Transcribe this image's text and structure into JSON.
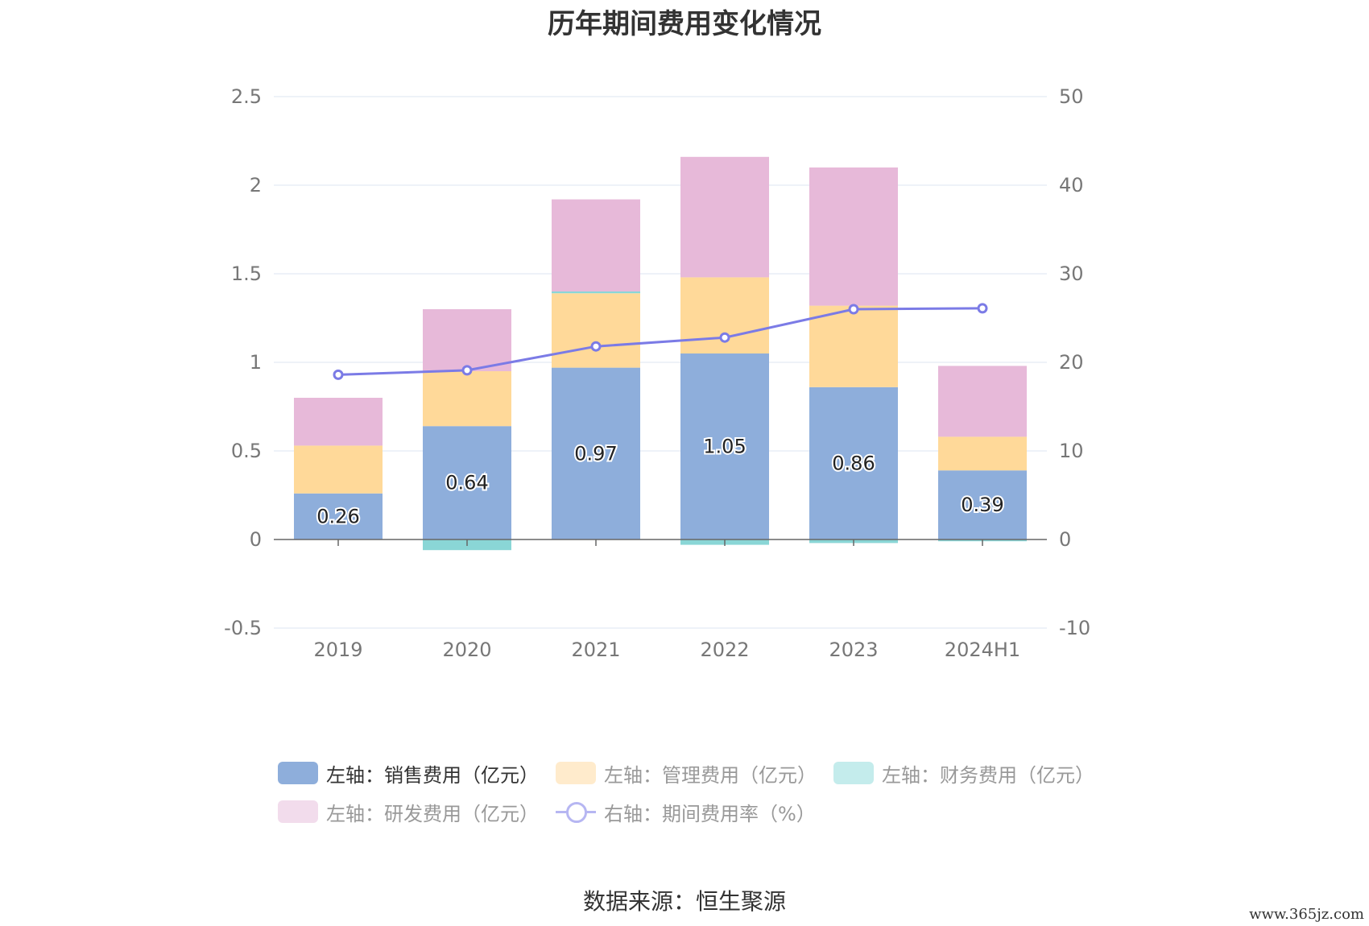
{
  "title": "历年期间费用变化情况",
  "source": "数据来源：恒生聚源",
  "watermark": "www.365jz.com",
  "colors": {
    "sales": "#8eaedb",
    "admin": "#ffd999",
    "finance": "#8ad6d6",
    "rnd": "#e7b9d9",
    "rate": "#7b7be6",
    "grid": "#dde4f2",
    "axis": "#666666",
    "tick_text": "#777777"
  },
  "legend": [
    {
      "label": "左轴：销售费用（亿元）",
      "color": "#8eaedb",
      "kind": "bar",
      "active": true
    },
    {
      "label": "左轴：管理费用（亿元）",
      "color": "#ffebcc",
      "kind": "bar",
      "active": false
    },
    {
      "label": "左轴：财务费用（亿元）",
      "color": "#c4ecec",
      "kind": "bar",
      "active": false
    },
    {
      "label": "左轴：研发费用（亿元）",
      "color": "#f2dcec",
      "kind": "bar",
      "active": false
    },
    {
      "label": "右轴：期间费用率（%）",
      "color": "#b6b6f2",
      "kind": "line",
      "active": false
    }
  ],
  "chart_data": {
    "type": "bar",
    "title": "历年期间费用变化情况",
    "categories": [
      "2019",
      "2020",
      "2021",
      "2022",
      "2023",
      "2024H1"
    ],
    "y_left": {
      "ylim": [
        -0.5,
        2.5
      ],
      "ticks": [
        "2.5",
        "2",
        "1.5",
        "1",
        "0.5",
        "0",
        "-0.5"
      ],
      "tick_values": [
        2.5,
        2,
        1.5,
        1,
        0.5,
        0,
        -0.5
      ]
    },
    "y_right": {
      "ylim": [
        -10,
        50
      ],
      "ticks": [
        "50",
        "40",
        "30",
        "20",
        "10",
        "0",
        "-10"
      ],
      "tick_values": [
        50,
        40,
        30,
        20,
        10,
        0,
        -10
      ]
    },
    "grid": true,
    "legend_position": "bottom",
    "series": [
      {
        "name": "左轴：销售费用（亿元）",
        "type": "bar",
        "axis": "left",
        "stack": true,
        "values": [
          0.26,
          0.64,
          0.97,
          1.05,
          0.86,
          0.39
        ],
        "data_labels": [
          "0.26",
          "0.64",
          "0.97",
          "1.05",
          "0.86",
          "0.39"
        ]
      },
      {
        "name": "左轴：管理费用（亿元）",
        "type": "bar",
        "axis": "left",
        "stack": true,
        "values": [
          0.27,
          0.31,
          0.42,
          0.43,
          0.46,
          0.19
        ]
      },
      {
        "name": "左轴：财务费用（亿元）",
        "type": "bar",
        "axis": "left",
        "stack": true,
        "values": [
          0.0,
          -0.06,
          0.01,
          -0.03,
          -0.02,
          -0.01
        ]
      },
      {
        "name": "左轴：研发费用（亿元）",
        "type": "bar",
        "axis": "left",
        "stack": true,
        "values": [
          0.27,
          0.35,
          0.52,
          0.68,
          0.78,
          0.4
        ]
      },
      {
        "name": "右轴：期间费用率（%）",
        "type": "line",
        "axis": "right",
        "values": [
          18.6,
          19.1,
          21.8,
          22.8,
          26.0,
          26.1
        ]
      }
    ]
  }
}
